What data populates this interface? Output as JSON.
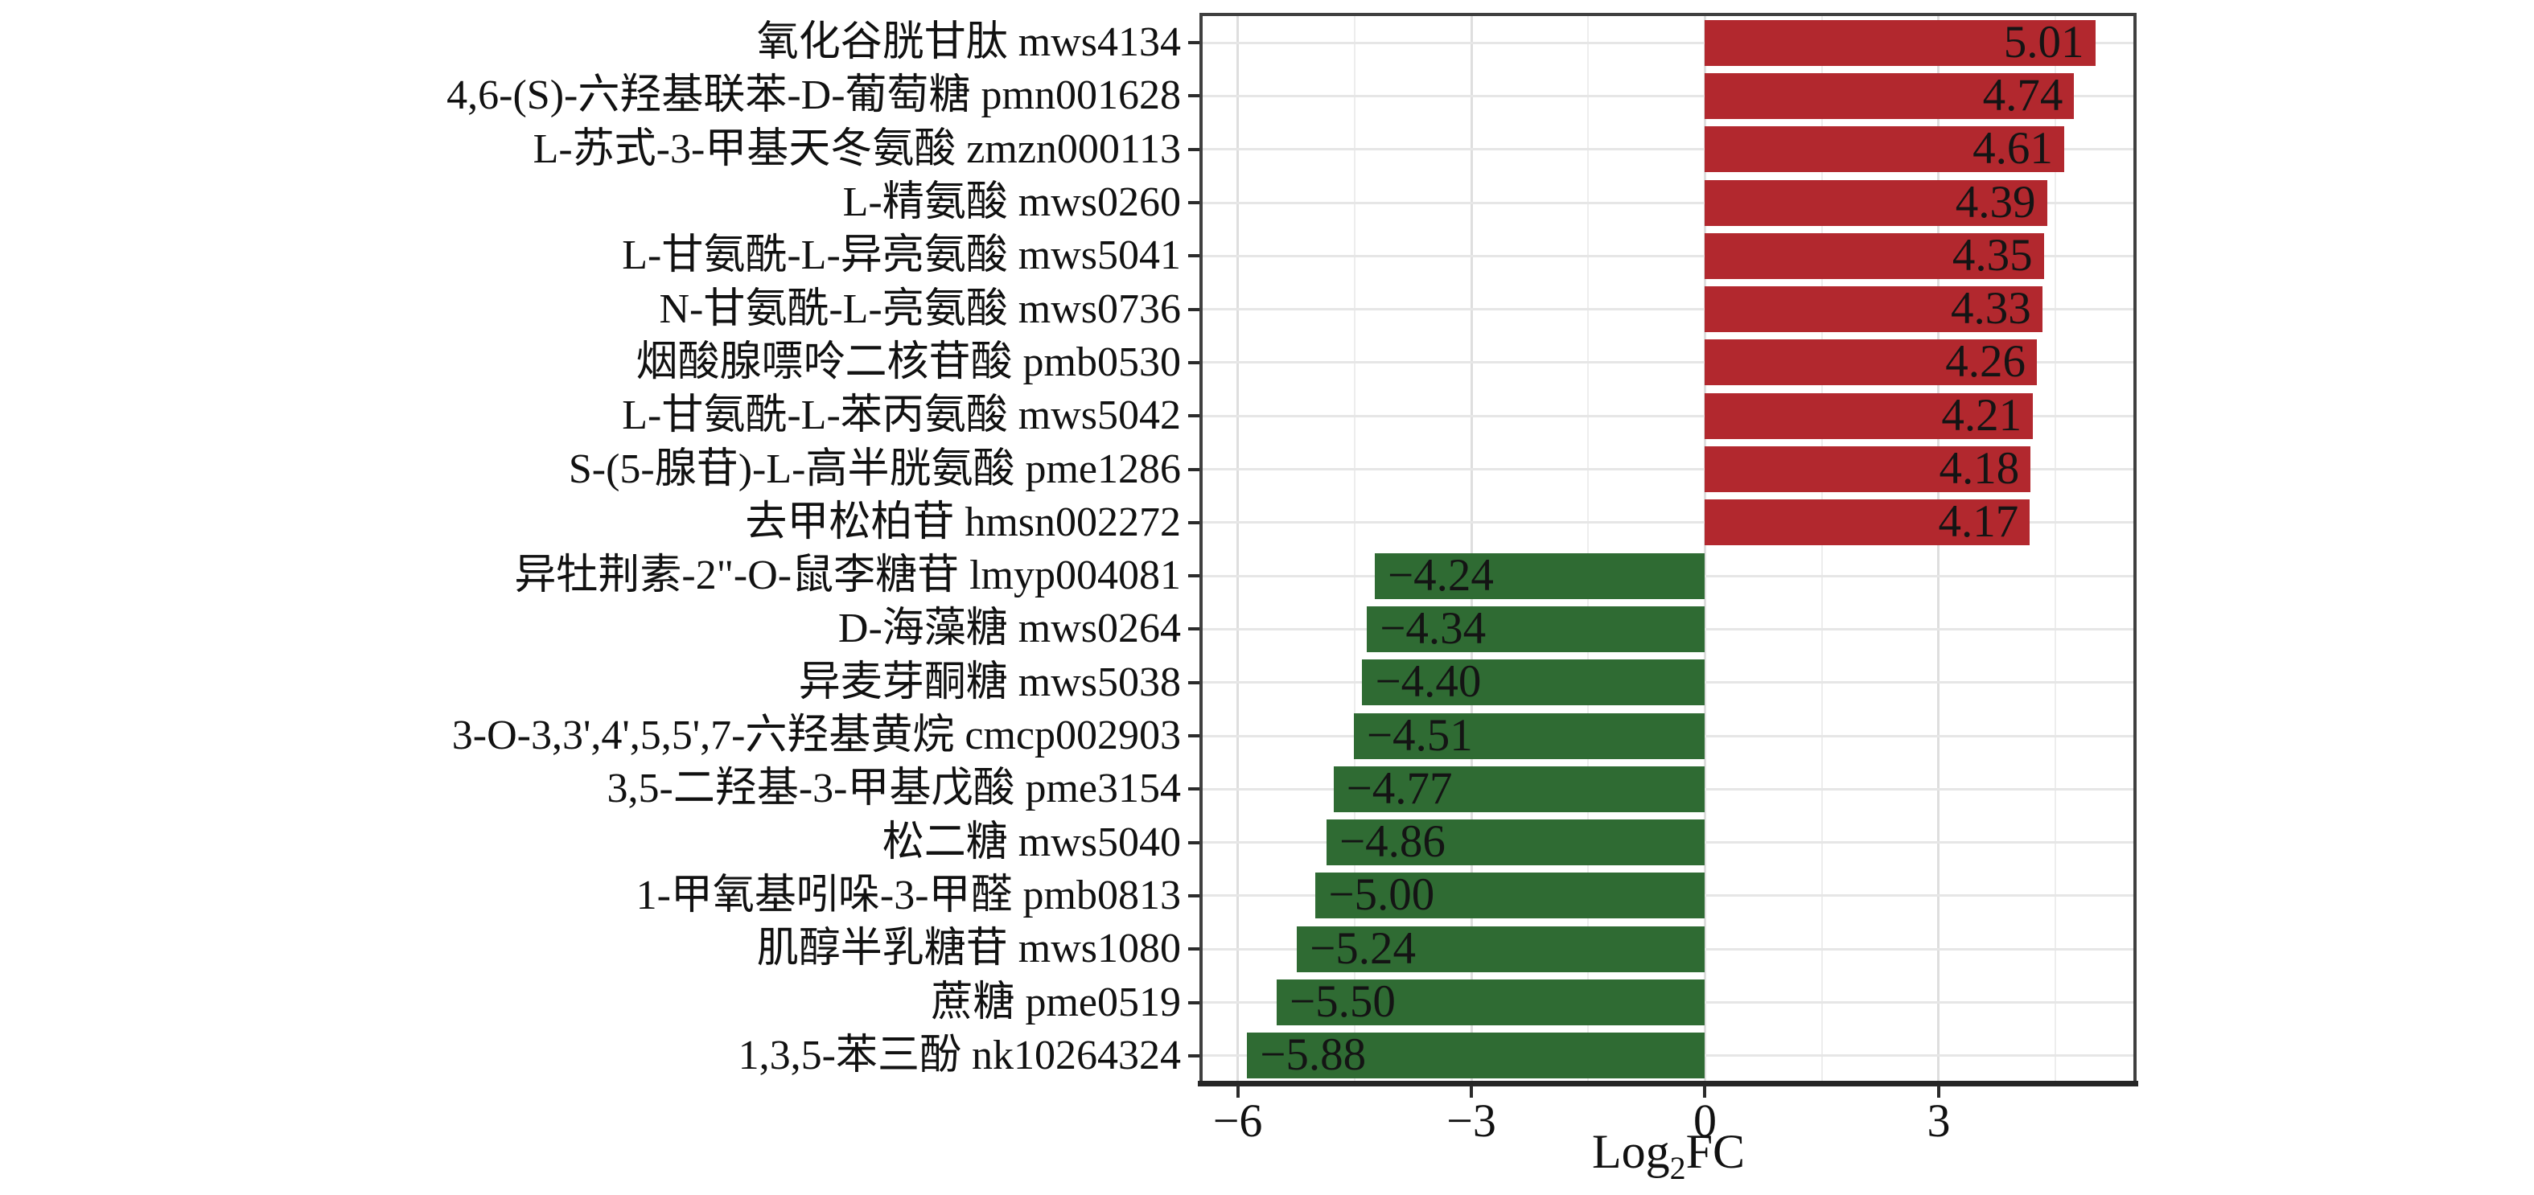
{
  "figure": {
    "background": "#ffffff",
    "panel": {
      "border_color": "#3f3f3f",
      "axis_line_color": "#262626",
      "grid_major_color": "#dedede",
      "grid_minor_color": "#ededed",
      "grid_horizontal_color": "#e6e6e6"
    },
    "axis": {
      "title_main": "Log",
      "title_sub": "2",
      "title_tail": "FC",
      "tick_labels": [
        "−6",
        "−3",
        "0",
        "3"
      ],
      "tick_values": [
        -6,
        -3,
        0,
        3
      ],
      "minor_tick_values": [
        -4.5,
        -1.5,
        1.5,
        4.5
      ],
      "xlim": [
        -6.45,
        5.5
      ]
    },
    "colors": {
      "positive_bar": "#b2282e",
      "negative_bar": "#2f6b33",
      "text": "#1a1a1a"
    }
  },
  "chart_data": {
    "type": "bar",
    "orientation": "horizontal",
    "title": "",
    "xlabel": "Log2FC",
    "ylabel": "",
    "xlim": [
      -6.45,
      5.5
    ],
    "xticks": [
      -6,
      -3,
      0,
      3
    ],
    "grid": true,
    "legend": false,
    "positive_color": "#b2282e",
    "negative_color": "#2f6b33",
    "categories": [
      "氧化谷胱甘肽 mws4134",
      "4,6-(S)-六羟基联苯-D-葡萄糖 pmn001628",
      "L-苏式-3-甲基天冬氨酸 zmzn000113",
      "L-精氨酸 mws0260",
      "L-甘氨酰-L-异亮氨酸 mws5041",
      "N-甘氨酰-L-亮氨酸 mws0736",
      "烟酸腺嘌呤二核苷酸 pmb0530",
      "L-甘氨酰-L-苯丙氨酸 mws5042",
      "S-(5-腺苷)-L-高半胱氨酸 pme1286",
      "去甲松柏苷 hmsn002272",
      "异牡荆素-2\"-O-鼠李糖苷 lmyp004081",
      "D-海藻糖 mws0264",
      "异麦芽酮糖 mws5038",
      "3-O-3,3',4',5,5',7-六羟基黄烷 cmcp002903",
      "3,5-二羟基-3-甲基戊酸 pme3154",
      "松二糖 mws5040",
      "1-甲氧基吲哚-3-甲醛 pmb0813",
      "肌醇半乳糖苷 mws1080",
      "蔗糖 pme0519",
      "1,3,5-苯三酚 nk10264324"
    ],
    "values": [
      5.01,
      4.74,
      4.61,
      4.39,
      4.35,
      4.33,
      4.26,
      4.21,
      4.18,
      4.17,
      -4.24,
      -4.34,
      -4.4,
      -4.51,
      -4.77,
      -4.86,
      -5.0,
      -5.24,
      -5.5,
      -5.88
    ],
    "value_labels": [
      "5.01",
      "4.74",
      "4.61",
      "4.39",
      "4.35",
      "4.33",
      "4.26",
      "4.21",
      "4.18",
      "4.17",
      "−4.24",
      "−4.34",
      "−4.40",
      "−4.51",
      "−4.77",
      "−4.86",
      "−5.00",
      "−5.24",
      "−5.50",
      "−5.88"
    ]
  }
}
